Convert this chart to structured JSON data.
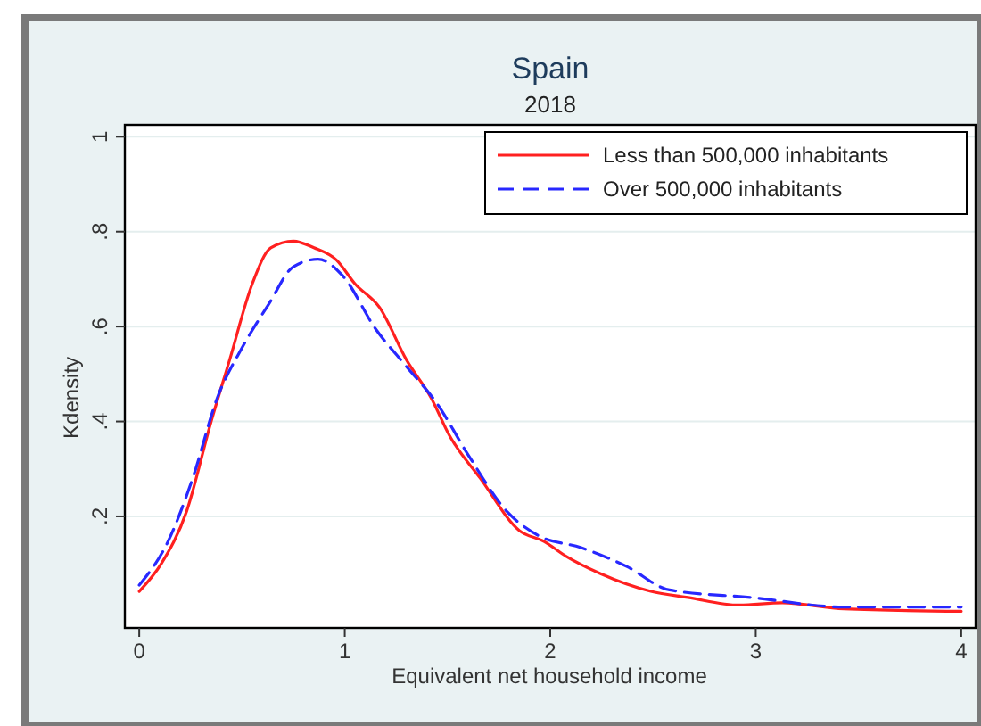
{
  "chart_data": {
    "type": "line",
    "title": "Spain",
    "subtitle": "2018",
    "xlabel": "Equivalent net household income",
    "ylabel": "Kdensity",
    "xlim": [
      -0.07,
      4.07
    ],
    "ylim": [
      -0.035,
      1.025
    ],
    "xticks": [
      0,
      1,
      2,
      3,
      4
    ],
    "yticks": [
      {
        "value": 0.2,
        "label": ".2"
      },
      {
        "value": 0.4,
        "label": ".4"
      },
      {
        "value": 0.6,
        "label": ".6"
      },
      {
        "value": 0.8,
        "label": ".8"
      },
      1
    ],
    "grid": "y",
    "legend": "top right",
    "series": [
      {
        "name": "Less than 500,000 inhabitants",
        "color": "#ff2020",
        "line_style": "solid",
        "x": [
          0,
          0.107,
          0.23,
          0.35,
          0.44,
          0.55,
          0.64,
          0.75,
          0.85,
          0.96,
          1.05,
          1.17,
          1.3,
          1.42,
          1.51,
          1.66,
          1.85,
          1.97,
          2.08,
          2.24,
          2.49,
          2.67,
          2.92,
          3.13,
          3.43,
          4
        ],
        "values": [
          0.042,
          0.1,
          0.21,
          0.4,
          0.53,
          0.69,
          0.766,
          0.78,
          0.766,
          0.74,
          0.69,
          0.64,
          0.53,
          0.45,
          0.37,
          0.28,
          0.17,
          0.147,
          0.115,
          0.08,
          0.042,
          0.029,
          0.013,
          0.018,
          0.005,
          0
        ]
      },
      {
        "name": "Over 500,000 inhabitants",
        "color": "#2828ff",
        "line_style": "dashed",
        "x": [
          0,
          0.14,
          0.26,
          0.38,
          0.5,
          0.63,
          0.75,
          0.87,
          0.99,
          1.15,
          1.3,
          1.45,
          1.6,
          1.79,
          1.94,
          2.15,
          2.37,
          2.58,
          2.98,
          3.43,
          4
        ],
        "values": [
          0.055,
          0.147,
          0.28,
          0.45,
          0.555,
          0.647,
          0.726,
          0.742,
          0.707,
          0.595,
          0.516,
          0.437,
          0.33,
          0.21,
          0.16,
          0.134,
          0.095,
          0.045,
          0.029,
          0.009,
          0.009
        ]
      }
    ]
  }
}
